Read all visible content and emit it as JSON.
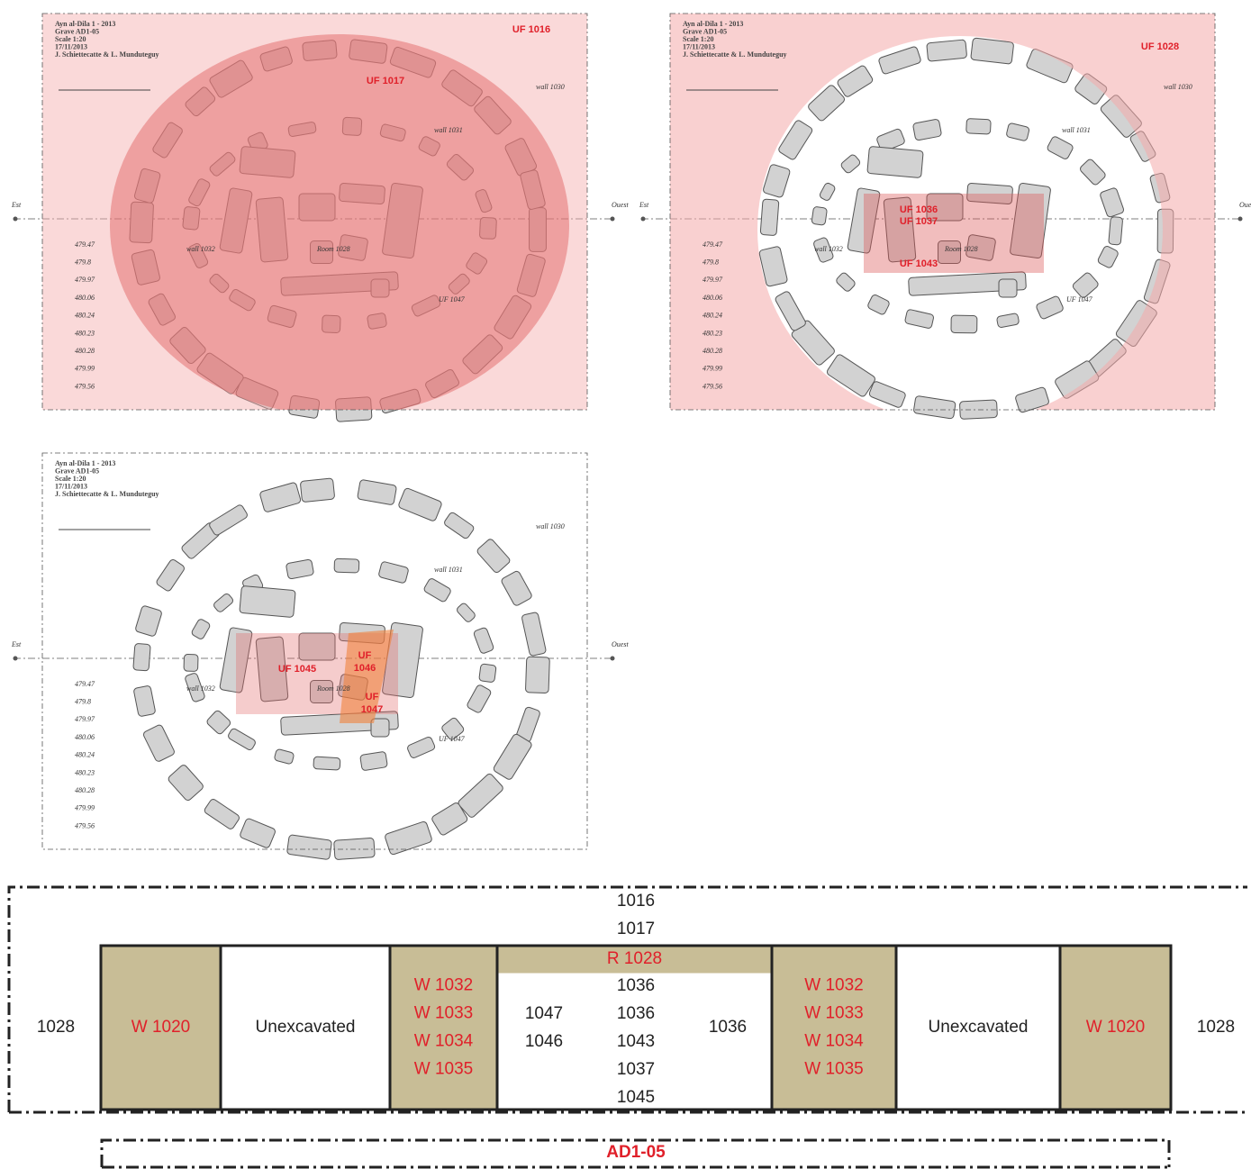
{
  "plan_header": [
    "Ayn al-Dila 1 - 2013",
    "Grave AD1-05",
    "Scale 1:20",
    "17/11/2013",
    "J. Schiettecatte & L. Munduteguy"
  ],
  "plan_labels": {
    "east": "Est",
    "west": "Ouest",
    "wall_outer": "wall 1030",
    "wall_inner": "wall 1031",
    "wall_west": "wall 1032",
    "room": "Room 1028",
    "uf": "UF 1047"
  },
  "elevations": [
    "479.47",
    "479.8",
    "479.97",
    "480.06",
    "480.24",
    "480.23",
    "480.28",
    "479.99",
    "479.56"
  ],
  "plans": [
    {
      "labels": [
        [
          "UF 1016"
        ],
        [
          "UF 1017"
        ]
      ]
    },
    {
      "labels": [
        [
          "UF 1028"
        ],
        [
          "UF 1036"
        ],
        [
          "UF 1037"
        ],
        [
          "UF 1043"
        ]
      ]
    },
    {
      "labels": [
        [
          "UF 1045"
        ],
        [
          "UF",
          "1046"
        ],
        [
          "UF",
          "1047"
        ]
      ]
    }
  ],
  "matrix": {
    "top": [
      "1016",
      "1017"
    ],
    "sides": [
      "1028",
      "1028"
    ],
    "columns": [
      {
        "lines": [
          "W 1020"
        ]
      },
      {
        "lines": [
          "Unexcavated"
        ]
      },
      {
        "lines": [
          "W 1032",
          "W 1033",
          "W 1034",
          "W 1035"
        ]
      },
      {
        "header": "R 1028",
        "left": [
          "1047",
          "1046"
        ],
        "center": [
          "1036",
          "1036",
          "1043",
          "1037",
          "1045"
        ],
        "right": [
          "1036"
        ]
      },
      {
        "lines": [
          "W 1032",
          "W 1033",
          "W 1034",
          "W 1035"
        ]
      },
      {
        "lines": [
          "Unexcavated"
        ]
      },
      {
        "lines": [
          "W 1020"
        ]
      }
    ],
    "footer": "AD1-05"
  }
}
